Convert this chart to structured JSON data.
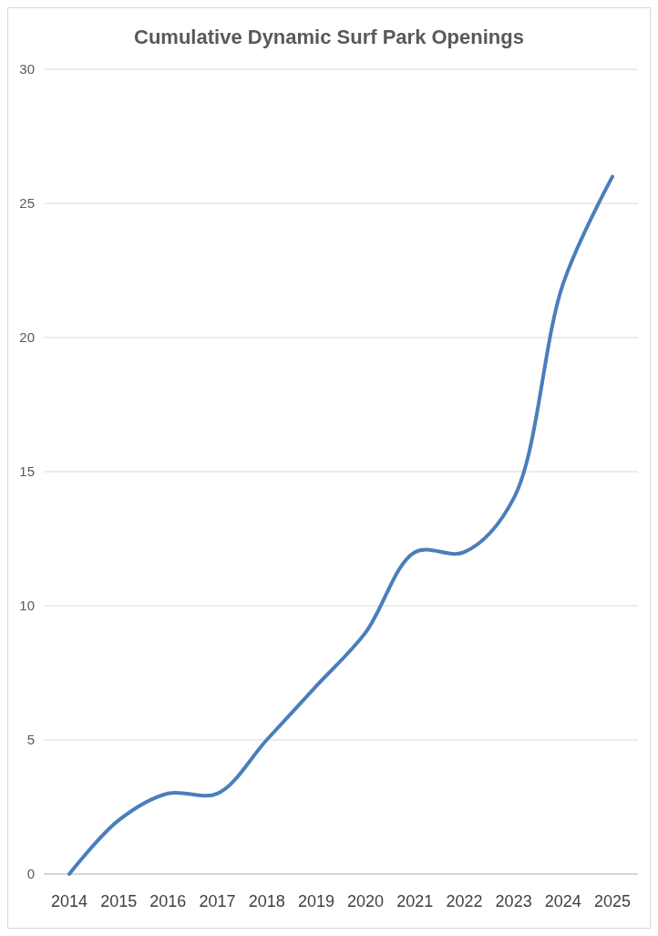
{
  "chart_data": {
    "type": "line",
    "title": "Cumulative Dynamic Surf Park Openings",
    "categories": [
      "2014",
      "2015",
      "2016",
      "2017",
      "2018",
      "2019",
      "2020",
      "2021",
      "2022",
      "2023",
      "2024",
      "2025"
    ],
    "series": [
      {
        "color": "#4a7ebb",
        "values": [
          0,
          2,
          3,
          3,
          5,
          7,
          9,
          12,
          12,
          14,
          22,
          26
        ]
      }
    ],
    "ylim": [
      0,
      30
    ],
    "yticks": [
      0,
      5,
      10,
      15,
      20,
      25,
      30
    ],
    "grid": "y",
    "marker": "none",
    "line_style": "solid"
  }
}
